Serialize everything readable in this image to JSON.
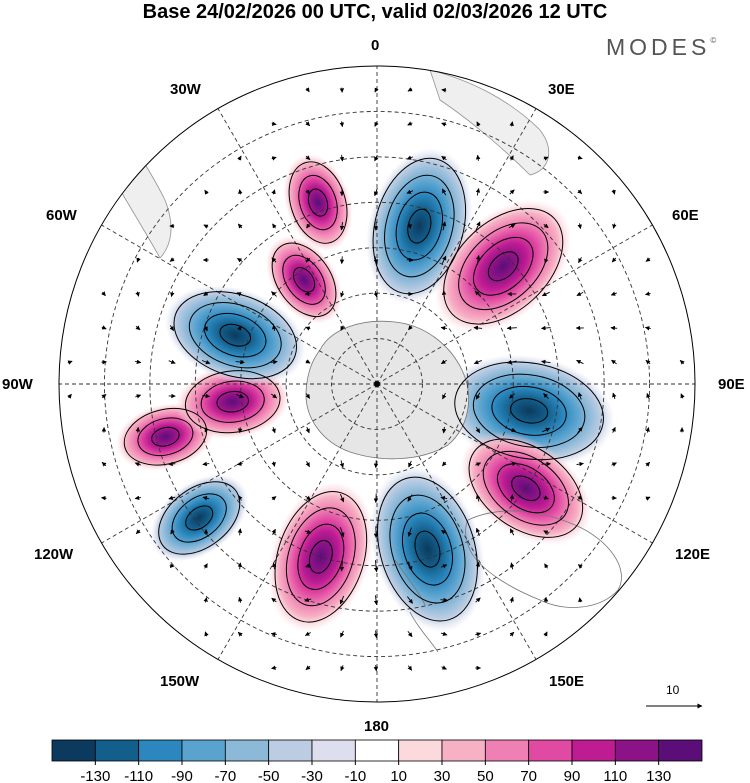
{
  "title": "Base 24/02/2026 00 UTC, valid 02/03/2026 12 UTC",
  "brand": {
    "name": "MODES",
    "mark": "©"
  },
  "longitude_labels": [
    "0",
    "30E",
    "60E",
    "90E",
    "120E",
    "150E",
    "180",
    "150W",
    "120W",
    "90W",
    "60W",
    "30W"
  ],
  "reference_vector": {
    "value": "10"
  },
  "colorbar": {
    "ticks": [
      "-130",
      "-110",
      "-90",
      "-70",
      "-50",
      "-30",
      "-10",
      "10",
      "30",
      "50",
      "70",
      "90",
      "110",
      "130"
    ],
    "colors": [
      "#0c3a5e",
      "#135f8c",
      "#2b87bd",
      "#5aa3cf",
      "#8db9d8",
      "#bccde3",
      "#dedfee",
      "#ffffff",
      "#fbd9dc",
      "#f7b1c4",
      "#ef80b3",
      "#e14aa3",
      "#bd1c92",
      "#8c1287",
      "#5c0e78"
    ]
  },
  "anomaly_centers": [
    {
      "lon": 15,
      "lat": -54,
      "value": -110
    },
    {
      "lon": 47,
      "lat": -52,
      "value": 112
    },
    {
      "lon": 100,
      "lat": -56,
      "value": -125
    },
    {
      "lon": 125,
      "lat": -50,
      "value": 95
    },
    {
      "lon": 163,
      "lat": -52,
      "value": -122
    },
    {
      "lon": -162,
      "lat": -50,
      "value": 105
    },
    {
      "lon": -127,
      "lat": -41,
      "value": -55
    },
    {
      "lon": -104,
      "lat": -42,
      "value": 45
    },
    {
      "lon": -97,
      "lat": -58,
      "value": 60
    },
    {
      "lon": -71,
      "lat": -57,
      "value": -95
    },
    {
      "lon": -35,
      "lat": -62,
      "value": 42
    },
    {
      "lon": -18,
      "lat": -48,
      "value": 45
    }
  ]
}
